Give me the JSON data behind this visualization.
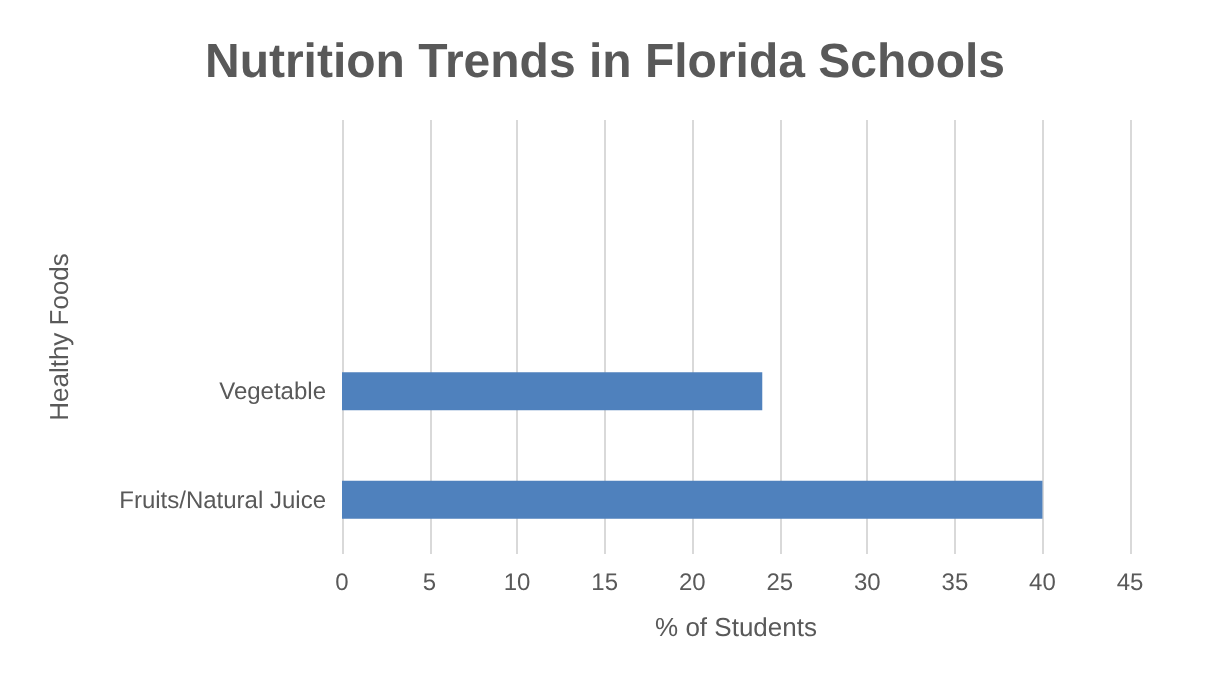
{
  "chart_data": {
    "type": "bar",
    "orientation": "horizontal",
    "title": "Nutrition Trends in Florida Schools",
    "xlabel": "% of Students",
    "ylabel": "Healthy Foods",
    "categories": [
      null,
      null,
      "Vegetable",
      "Fruits/Natural Juice"
    ],
    "values": [
      null,
      null,
      24,
      40
    ],
    "color": "#4f81bd",
    "xlim": [
      0,
      45
    ],
    "xticks": [
      0,
      5,
      10,
      15,
      20,
      25,
      30,
      35,
      40,
      45
    ],
    "grid": "x"
  }
}
